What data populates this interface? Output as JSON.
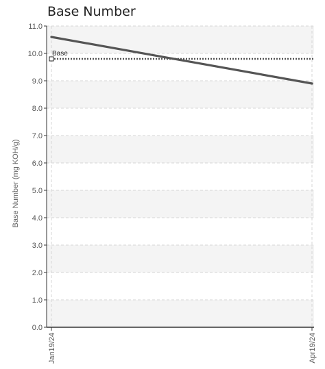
{
  "chart_data": {
    "type": "line",
    "title": "Base Number",
    "xlabel": "",
    "ylabel": "Base Number (mg KOH/g)",
    "x": [
      "Jan19/24",
      "Apr19/24"
    ],
    "x_tick_labels": [
      "Jan19/24",
      "Apr19/24"
    ],
    "ylim": [
      0.0,
      11.0
    ],
    "y_tick_labels": [
      "0.0",
      "1.0",
      "2.0",
      "3.0",
      "4.0",
      "5.0",
      "6.0",
      "7.0",
      "8.0",
      "9.0",
      "10.0",
      "11.0"
    ],
    "grid": true,
    "series": [
      {
        "values": [
          10.6,
          8.9
        ],
        "color": "#555555"
      }
    ],
    "reference_lines": [
      {
        "label": "Base",
        "value": 9.8,
        "style": "dotted",
        "color": "#555555"
      }
    ],
    "colors": {
      "band": "#f4f4f4",
      "grid": "#d6d6d6",
      "axis": "#333333"
    }
  }
}
